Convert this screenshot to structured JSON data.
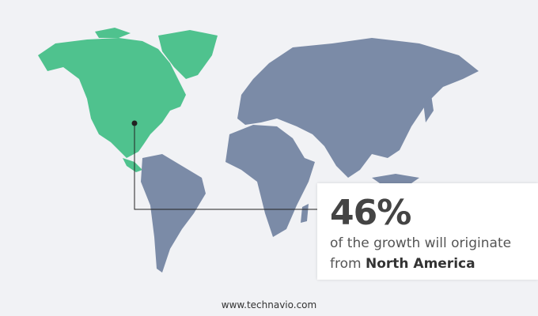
{
  "highlight": {
    "region": "North America",
    "percent": "46%",
    "text_before": "of the growth will originate",
    "text_from": "from",
    "region_label": "North America"
  },
  "colors": {
    "highlight": "#4fc28e",
    "other": "#7b8ba7",
    "background": "#f1f2f5"
  },
  "footer": {
    "website": "www.technavio.com"
  }
}
